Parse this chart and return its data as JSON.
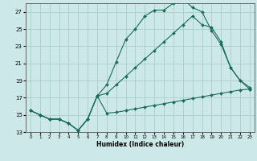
{
  "xlabel": "Humidex (Indice chaleur)",
  "bg_color": "#cce8e8",
  "grid_color": "#aacccc",
  "line_color": "#1a6b5a",
  "xlim": [
    -0.5,
    23.5
  ],
  "ylim": [
    13,
    28
  ],
  "xticks": [
    0,
    1,
    2,
    3,
    4,
    5,
    6,
    7,
    8,
    9,
    10,
    11,
    12,
    13,
    14,
    15,
    16,
    17,
    18,
    19,
    20,
    21,
    22,
    23
  ],
  "yticks": [
    13,
    15,
    17,
    19,
    21,
    23,
    25,
    27
  ],
  "line1_x": [
    0,
    1,
    2,
    3,
    4,
    5,
    6,
    7,
    8,
    9,
    10,
    11,
    12,
    13,
    14,
    15,
    16,
    17,
    18,
    19,
    20,
    21,
    22,
    23
  ],
  "line1_y": [
    15.5,
    15.0,
    14.5,
    14.5,
    14.0,
    13.2,
    14.5,
    17.2,
    18.5,
    21.2,
    23.8,
    25.0,
    26.5,
    27.2,
    27.2,
    28.0,
    28.5,
    27.5,
    27.0,
    24.8,
    23.2,
    20.5,
    19.0,
    18.2
  ],
  "line2_x": [
    0,
    1,
    2,
    3,
    4,
    5,
    6,
    7,
    8,
    9,
    10,
    11,
    12,
    13,
    14,
    15,
    16,
    17,
    18,
    19,
    20,
    21,
    22,
    23
  ],
  "line2_y": [
    15.5,
    15.0,
    14.5,
    14.5,
    14.0,
    13.2,
    14.5,
    17.2,
    15.2,
    15.3,
    15.5,
    15.7,
    15.9,
    16.1,
    16.3,
    16.5,
    16.7,
    16.9,
    17.1,
    17.3,
    17.5,
    17.7,
    17.9,
    18.0
  ],
  "line3_x": [
    0,
    1,
    2,
    3,
    4,
    5,
    6,
    7,
    8,
    9,
    10,
    11,
    12,
    13,
    14,
    15,
    16,
    17,
    18,
    19,
    20,
    21,
    22,
    23
  ],
  "line3_y": [
    15.5,
    15.0,
    14.5,
    14.5,
    14.0,
    13.2,
    14.5,
    17.2,
    17.5,
    18.5,
    19.5,
    20.5,
    21.5,
    22.5,
    23.5,
    24.5,
    25.5,
    26.5,
    25.5,
    25.2,
    23.5,
    20.5,
    19.0,
    18.0
  ]
}
